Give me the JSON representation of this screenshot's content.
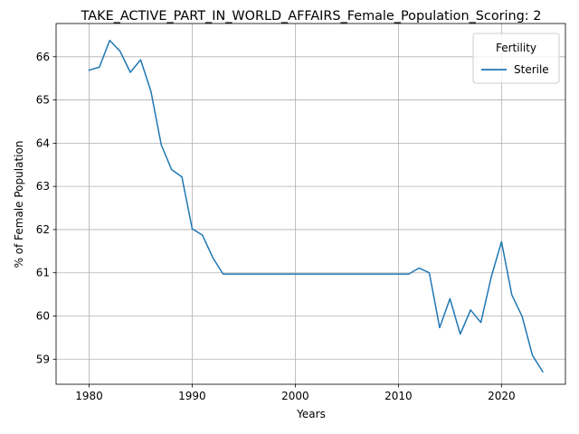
{
  "chart_data": {
    "type": "line",
    "title": "TAKE_ACTIVE_PART_IN_WORLD_AFFAIRS_Female_Population_Scoring: 2",
    "xlabel": "Years",
    "ylabel": "% of Female Population",
    "xlim": [
      1976.8,
      2026.2
    ],
    "ylim": [
      58.42,
      66.77
    ],
    "x_ticks": [
      1980,
      1990,
      2000,
      2010,
      2020
    ],
    "y_ticks": [
      59,
      60,
      61,
      62,
      63,
      64,
      65,
      66
    ],
    "grid": true,
    "legend": {
      "title": "Fertility",
      "placement": "top-right"
    },
    "series": [
      {
        "name": "Sterile",
        "color": "#1f77b4",
        "x": [
          1980,
          1981,
          1982,
          1983,
          1984,
          1985,
          1986,
          1987,
          1988,
          1989,
          1990,
          1991,
          1992,
          1993,
          1994,
          1995,
          1996,
          1997,
          1998,
          1999,
          2000,
          2001,
          2002,
          2003,
          2004,
          2005,
          2006,
          2007,
          2008,
          2009,
          2010,
          2011,
          2012,
          2013,
          2014,
          2015,
          2016,
          2017,
          2018,
          2019,
          2020,
          2021,
          2022,
          2023,
          2024
        ],
        "values": [
          65.69,
          65.76,
          66.38,
          66.13,
          65.64,
          65.93,
          65.2,
          63.96,
          63.39,
          63.22,
          62.02,
          61.87,
          61.35,
          60.97,
          60.97,
          60.97,
          60.97,
          60.97,
          60.97,
          60.97,
          60.97,
          60.97,
          60.97,
          60.97,
          60.97,
          60.97,
          60.97,
          60.97,
          60.97,
          60.97,
          60.97,
          60.97,
          61.11,
          61.0,
          59.73,
          60.4,
          59.58,
          60.14,
          59.85,
          60.9,
          61.72,
          60.49,
          59.99,
          59.09,
          58.71
        ]
      }
    ]
  }
}
